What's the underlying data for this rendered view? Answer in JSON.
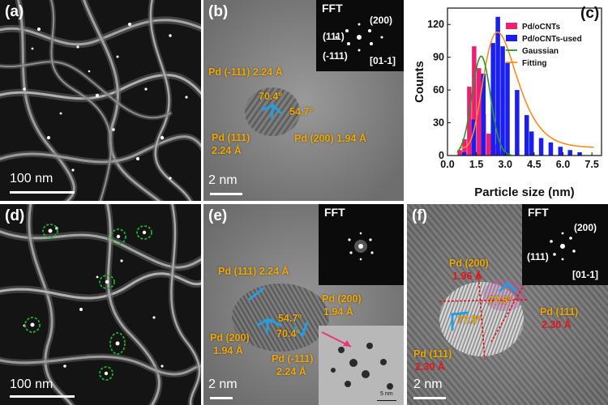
{
  "panels": {
    "a": {
      "label": "(a)",
      "scale": "100 nm"
    },
    "b": {
      "label": "(b)",
      "scale": "2 nm",
      "fft": {
        "title": "FFT",
        "spots": [
          "(200)",
          "(111)",
          "(-111)"
        ],
        "zone": "[01-1]"
      },
      "annotations": {
        "pd_m111": "Pd (-111)  2.24 Å",
        "angle1": "70.4º",
        "angle2": "54.7º",
        "pd111_a": "Pd (111)",
        "pd111_b": "2.24 Å",
        "pd200": "Pd (200)  1.94 Å"
      }
    },
    "c": {
      "label": "(c)"
    },
    "d": {
      "label": "(d)",
      "scale": "100 nm"
    },
    "e": {
      "label": "(e)",
      "scale": "2 nm",
      "fft": {
        "title": "FFT"
      },
      "annotations": {
        "pd111": "Pd (111) 2.24 Å",
        "pd200r_a": "Pd (200)",
        "pd200r_b": "1.94 Å",
        "angle1": "54.7º",
        "angle2": "70.4º",
        "pd200l_a": "Pd (200)",
        "pd200l_b": "1.94 Å",
        "pdm111_a": "Pd (-111)",
        "pdm111_b": "2.24 Å"
      },
      "inset_scale": "5 nm"
    },
    "f": {
      "label": "(f)",
      "scale": "2 nm",
      "fft": {
        "title": "FFT",
        "spots": [
          "(200)",
          "(111)"
        ],
        "zone": "[01-1]"
      },
      "annotations": {
        "pd200_a": "Pd (200)",
        "pd200_b": "1.96 Å",
        "angle1": "77.5º",
        "angle2": "77.5º",
        "pd111r_a": "Pd (111)",
        "pd111r_b": "2.30 Å",
        "pd111l_a": "Pd (111)",
        "pd111l_b": "2.30 Å"
      }
    }
  },
  "colors": {
    "yellow": "#f0a800",
    "red": "#e0151b",
    "cyan": "#1ea0e6",
    "green": "#22b02a",
    "bar_a": "#ee1f73",
    "bar_b": "#1a1ef0",
    "gauss": "#1f9b2a",
    "fit": "#ff8c1a"
  },
  "chart_data": {
    "type": "bar",
    "xlabel": "Particle size (nm)",
    "ylabel": "Counts",
    "xlim": [
      0.0,
      8.0
    ],
    "ylim": [
      0,
      135
    ],
    "xticks": [
      "0.0",
      "1.5",
      "3.0",
      "4.5",
      "6.0",
      "7.5"
    ],
    "yticks": [
      "0",
      "30",
      "60",
      "90",
      "120"
    ],
    "legend_position": "top-right",
    "series": [
      {
        "name": "Pd/oCNTs",
        "x": [
          0.75,
          1.0,
          1.25,
          1.5,
          1.75,
          2.0,
          2.25,
          2.5,
          2.75,
          3.0
        ],
        "values": [
          5,
          15,
          63,
          100,
          80,
          38,
          20,
          10,
          4,
          2
        ]
      },
      {
        "name": "Pd/oCNTs-used",
        "x": [
          0.75,
          1.25,
          1.75,
          2.25,
          2.5,
          2.75,
          3.0,
          3.5,
          4.0,
          4.25,
          4.75,
          5.25,
          5.75,
          6.25,
          6.75
        ],
        "values": [
          3,
          33,
          75,
          103,
          127,
          100,
          85,
          60,
          37,
          22,
          16,
          12,
          8,
          5,
          3
        ]
      }
    ],
    "curves": [
      {
        "name": "Gaussian",
        "type": "gaussian",
        "amplitude": 91,
        "mean": 1.75,
        "sigma": 0.48
      },
      {
        "name": "Fitting",
        "type": "lognormal",
        "amplitude": 113,
        "mode": 2.6,
        "sigma": 0.33,
        "offset": 7
      }
    ]
  }
}
